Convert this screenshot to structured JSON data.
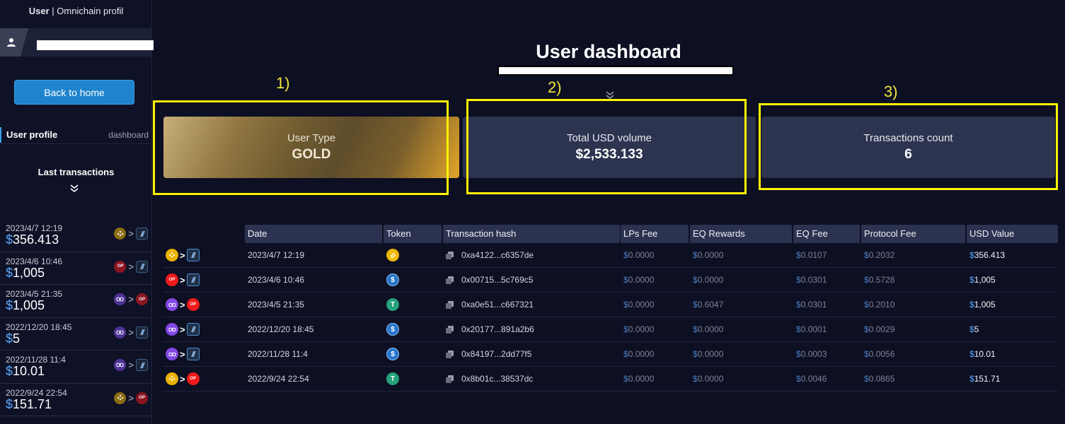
{
  "sidebar": {
    "title_bold": "User",
    "title_rest": " | Omnichain profil",
    "back_button": "Back to home",
    "tab_active": "User profile",
    "tab_other": "dashboard",
    "last_tx_heading": "Last transactions",
    "items": [
      {
        "date": "2023/4/7 12:19",
        "dollar": "$",
        "amount": "356.413",
        "from": "bnb",
        "to": "arb"
      },
      {
        "date": "2023/4/6 10:46",
        "dollar": "$",
        "amount": "1,005",
        "from": "op",
        "to": "arb"
      },
      {
        "date": "2023/4/5 21:35",
        "dollar": "$",
        "amount": "1,005",
        "from": "matic",
        "to": "op"
      },
      {
        "date": "2022/12/20 18:45",
        "dollar": "$",
        "amount": "5",
        "from": "matic",
        "to": "arb"
      },
      {
        "date": "2022/11/28 11:4",
        "dollar": "$",
        "amount": "10.01",
        "from": "matic",
        "to": "arb"
      },
      {
        "date": "2022/9/24 22:54",
        "dollar": "$",
        "amount": "151.71",
        "from": "bnb",
        "to": "op"
      }
    ]
  },
  "main": {
    "title": "User dashboard",
    "annotations": [
      "1)",
      "2)",
      "3)"
    ],
    "cards": [
      {
        "label": "User Type",
        "value": "GOLD"
      },
      {
        "label": "Total USD volume",
        "value": "$2,533.133"
      },
      {
        "label": "Transactions count",
        "value": "6"
      }
    ]
  },
  "table": {
    "headers": [
      "Date",
      "Token",
      "Transaction hash",
      "LPs Fee",
      "EQ Rewards",
      "EQ Fee",
      "Protocol Fee",
      "USD Value"
    ],
    "rows": [
      {
        "from": "bnb",
        "to": "arb",
        "date": "2023/4/7 12:19",
        "token": "busd",
        "hash": "0xa4122...c6357de",
        "lps_fee": "0.0000",
        "eq_rewards": "0.0000",
        "eq_fee": "0.0107",
        "protocol_fee": "0.2032",
        "usd_value": "356.413"
      },
      {
        "from": "op",
        "to": "arb",
        "date": "2023/4/6 10:46",
        "token": "usdc",
        "hash": "0x00715...5c769c5",
        "lps_fee": "0.0000",
        "eq_rewards": "0.0000",
        "eq_fee": "0.0301",
        "protocol_fee": "0.5728",
        "usd_value": "1,005"
      },
      {
        "from": "matic",
        "to": "op",
        "date": "2023/4/5 21:35",
        "token": "usdt",
        "hash": "0xa0e51...c667321",
        "lps_fee": "0.0000",
        "eq_rewards": "0.6047",
        "eq_fee": "0.0301",
        "protocol_fee": "0.2010",
        "usd_value": "1,005"
      },
      {
        "from": "matic",
        "to": "arb",
        "date": "2022/12/20 18:45",
        "token": "usdc",
        "hash": "0x20177...891a2b6",
        "lps_fee": "0.0000",
        "eq_rewards": "0.0000",
        "eq_fee": "0.0001",
        "protocol_fee": "0.0029",
        "usd_value": "5"
      },
      {
        "from": "matic",
        "to": "arb",
        "date": "2022/11/28 11:4",
        "token": "usdc",
        "hash": "0x84197...2dd77f5",
        "lps_fee": "0.0000",
        "eq_rewards": "0.0000",
        "eq_fee": "0.0003",
        "protocol_fee": "0.0056",
        "usd_value": "10.01"
      },
      {
        "from": "bnb",
        "to": "op",
        "date": "2022/9/24 22:54",
        "token": "usdt",
        "hash": "0x8b01c...38537dc",
        "lps_fee": "0.0000",
        "eq_rewards": "0.0000",
        "eq_fee": "0.0046",
        "protocol_fee": "0.0865",
        "usd_value": "151.71"
      }
    ]
  },
  "colors": {
    "accent": "#1f84cc",
    "highlight": "#fff200",
    "card": "#2d3450",
    "background": "#0d0f22"
  }
}
